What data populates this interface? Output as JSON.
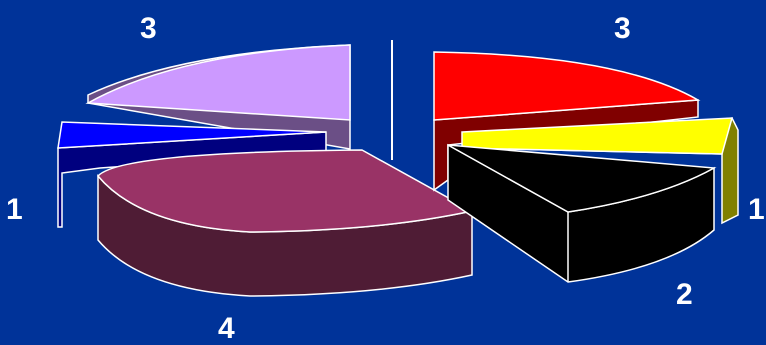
{
  "chart_data": {
    "type": "pie",
    "style": "3d-exploded",
    "background": "#003399",
    "outline_color": "#ffffff",
    "divider": true,
    "charts": [
      {
        "slices": [
          {
            "label": "3",
            "value": 3,
            "color": "#cc99ff",
            "side_color": "#6b4f86"
          },
          {
            "label": "1",
            "value": 1,
            "color": "#0000ff",
            "side_color": "#00007f"
          },
          {
            "label": "4",
            "value": 4,
            "color": "#993366",
            "side_color": "#4f1c35"
          }
        ]
      },
      {
        "slices": [
          {
            "label": "3",
            "value": 3,
            "color": "#ff0000",
            "side_color": "#800000"
          },
          {
            "label": "1",
            "value": 1,
            "color": "#ffff00",
            "side_color": "#808000"
          },
          {
            "label": "2",
            "value": 2,
            "color": "#000000",
            "side_color": "#000000"
          }
        ]
      }
    ]
  }
}
